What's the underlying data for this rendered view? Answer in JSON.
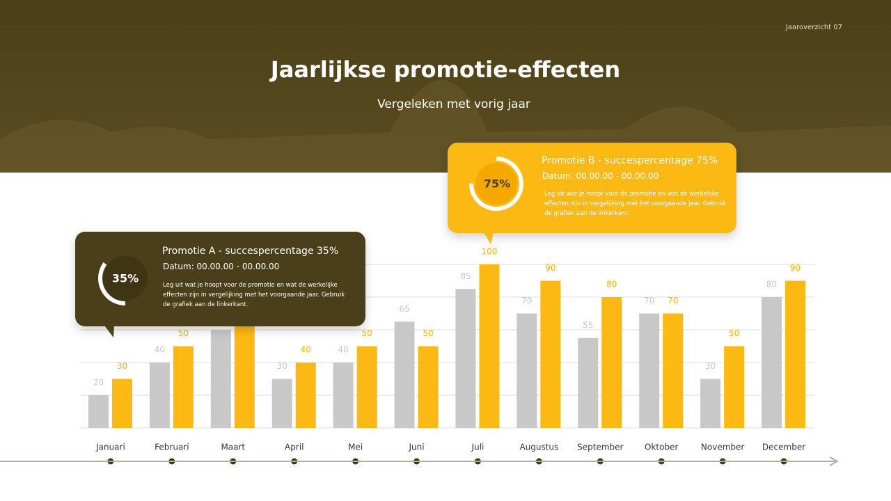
{
  "page_label": "Jaaroverzicht 07",
  "chart_data": {
    "type": "bar",
    "title": "Jaarlijkse promotie-effecten",
    "subtitle": "Vergeleken met vorig jaar",
    "categories": [
      "Januari",
      "Februari",
      "Maart",
      "April",
      "Mei",
      "Juni",
      "Juli",
      "Augustus",
      "September",
      "Oktober",
      "November",
      "December"
    ],
    "series": [
      {
        "color": "#c8c8c8",
        "values": [
          20,
          40,
          60,
          30,
          40,
          65,
          85,
          70,
          55,
          70,
          30,
          80
        ]
      },
      {
        "color": "#fdb913",
        "values": [
          30,
          50,
          70,
          40,
          50,
          50,
          100,
          90,
          80,
          70,
          50,
          90
        ]
      }
    ],
    "ylim": [
      0,
      100
    ],
    "yticks": [
      0,
      20,
      40,
      60,
      80,
      100
    ],
    "grid": true
  },
  "callouts": [
    {
      "percent": {
        "value": 35,
        "label": "35%"
      },
      "title": "Promotie A - succespercentage 35%",
      "date": "Datum: 00.00.00 - 00.00.00",
      "text": "Leg uit wat je hoopt voor de promotie en wat de werkelijke effecten zijn in vergelijking met het voorgaande jaar. Gebruik de grafiek aan de linkerkant."
    },
    {
      "percent": {
        "value": 75,
        "label": "75%"
      },
      "title": "Promotie B - succespercentage 75%",
      "date": "Datum: 00.00.00 - 00.00.00",
      "text": "Leg uit wat je hoopt voor de promotie en wat de werkelijke effecten zijn in vergelijking met het voorgaande jaar. Gebruik de grafiek aan de linkerkant."
    }
  ]
}
